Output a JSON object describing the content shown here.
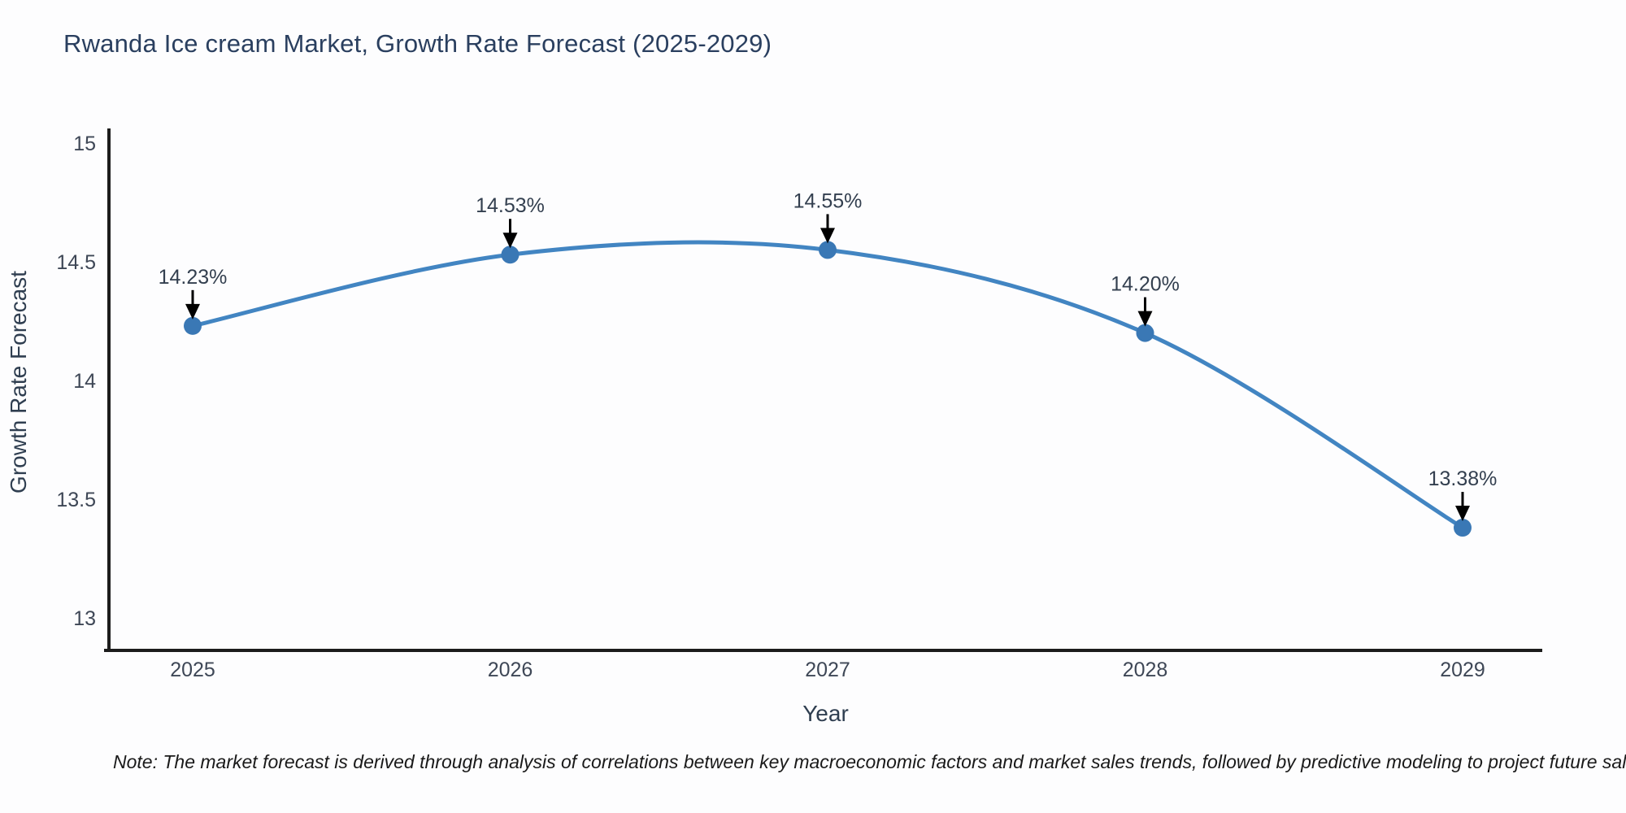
{
  "header": {
    "title": "Rwanda Ice cream Market, Growth Rate Forecast (2025-2029)"
  },
  "chart_data": {
    "type": "line",
    "title": "Rwanda Ice cream Market, Growth Rate Forecast (2025-2029)",
    "categories": [
      "2025",
      "2026",
      "2027",
      "2028",
      "2029"
    ],
    "x": [
      2025,
      2026,
      2027,
      2028,
      2029
    ],
    "values": [
      14.23,
      14.53,
      14.55,
      14.2,
      13.38
    ],
    "point_labels": [
      "14.23%",
      "14.53%",
      "14.55%",
      "14.20%",
      "13.38%"
    ],
    "xlabel": "Year",
    "ylabel": "Growth Rate Forecast",
    "y_ticks": [
      15,
      14.5,
      14,
      13.5,
      13
    ],
    "y_tick_labels": [
      "15",
      "14.5",
      "14",
      "13.5",
      "13"
    ],
    "ylim": [
      12.86,
      15.06
    ],
    "xlim": [
      2024.74,
      2029.25
    ],
    "grid": false,
    "legend_position": "none",
    "line_shape": "spline",
    "colors": {
      "line": "#4285c2",
      "marker": "#3a78b5",
      "axis_line": "#1c1c1c",
      "tick_label": "#3e4756",
      "axis_title": "#2f3e50",
      "annotation_text": "#333f4f",
      "annotation_arrow": "#000000",
      "title": "#2a3f5f"
    }
  },
  "footnote": {
    "text": "Note: The market forecast is derived through analysis of correlations between key macroeconomic factors and market sales trends, followed by predictive modeling to project future sal"
  }
}
